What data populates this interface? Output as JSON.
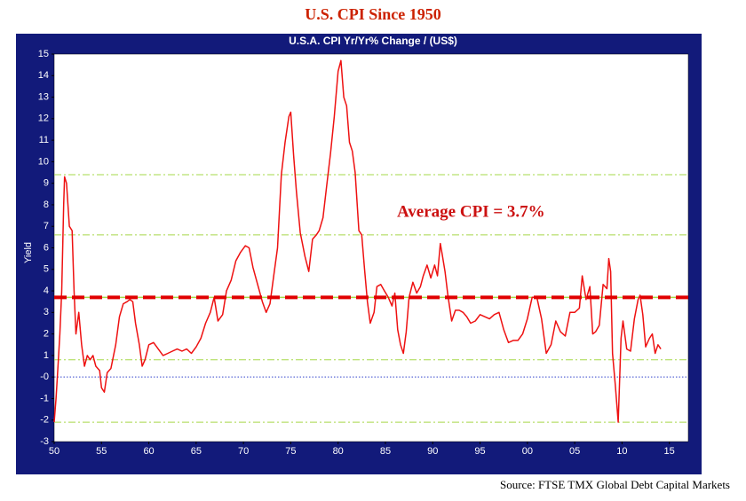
{
  "chart_data": {
    "type": "line",
    "title": "U.S. CPI Since 1950",
    "subtitle": "U.S.A. CPI Yr/Yr% Change / (US$)",
    "y_label": "Yield",
    "annotation": "Average CPI = 3.7%",
    "source": "Source: FTSE TMX Global Debt Capital Markets",
    "xlim": [
      50,
      117
    ],
    "ylim": [
      -3,
      15
    ],
    "xticks": [
      50,
      55,
      60,
      65,
      70,
      75,
      80,
      85,
      90,
      95,
      {
        "value": 100,
        "label": "00"
      },
      {
        "value": 105,
        "label": "05"
      },
      {
        "value": 110,
        "label": "10"
      },
      {
        "value": 115,
        "label": "15"
      }
    ],
    "yticks": [
      -3,
      -2,
      -1,
      {
        "value": 0,
        "label": "-0"
      },
      1,
      2,
      3,
      4,
      5,
      6,
      7,
      8,
      9,
      10,
      11,
      12,
      13,
      14,
      15
    ],
    "reference_lines": [
      {
        "value": 9.4,
        "style": "dashdot",
        "color": "#a6d84a"
      },
      {
        "value": 6.6,
        "style": "dashdot",
        "color": "#a6d84a"
      },
      {
        "value": 0.8,
        "style": "dashdot",
        "color": "#a6d84a"
      },
      {
        "value": -2.1,
        "style": "dashdot",
        "color": "#a6d84a"
      },
      {
        "value": 0,
        "style": "dotted",
        "color": "#3344cc"
      },
      {
        "value": 3.7,
        "style": "solid",
        "color": "#a6d84a"
      },
      {
        "value": 3.7,
        "style": "dashed",
        "color": "#e00000"
      }
    ],
    "x": [
      50.0,
      50.2,
      50.4,
      50.6,
      50.8,
      51.0,
      51.1,
      51.3,
      51.6,
      51.9,
      52.1,
      52.3,
      52.6,
      52.9,
      53.2,
      53.5,
      53.8,
      54.1,
      54.4,
      54.8,
      55.0,
      55.3,
      55.6,
      56.0,
      56.5,
      56.9,
      57.3,
      57.7,
      58.0,
      58.3,
      58.6,
      59.0,
      59.3,
      59.6,
      60.0,
      60.5,
      61.0,
      61.5,
      62.0,
      62.5,
      63.0,
      63.5,
      64.0,
      64.5,
      65.0,
      65.5,
      66.0,
      66.5,
      66.9,
      67.3,
      67.8,
      68.2,
      68.7,
      69.2,
      69.7,
      70.2,
      70.6,
      71.0,
      71.5,
      72.0,
      72.4,
      72.8,
      73.2,
      73.6,
      74.0,
      74.4,
      74.8,
      75.0,
      75.3,
      75.6,
      76.0,
      76.5,
      76.9,
      77.3,
      77.7,
      78.0,
      78.4,
      78.8,
      79.2,
      79.6,
      80.0,
      80.3,
      80.6,
      80.9,
      81.2,
      81.5,
      81.8,
      82.2,
      82.5,
      82.8,
      83.1,
      83.4,
      83.8,
      84.1,
      84.5,
      84.9,
      85.3,
      85.7,
      86.0,
      86.3,
      86.6,
      86.9,
      87.2,
      87.5,
      87.9,
      88.3,
      88.7,
      89.0,
      89.4,
      89.8,
      90.2,
      90.5,
      90.8,
      91.0,
      91.3,
      91.6,
      92.0,
      92.4,
      92.8,
      93.2,
      93.6,
      94.0,
      94.5,
      95.0,
      95.5,
      96.0,
      96.5,
      97.0,
      97.5,
      98.0,
      98.5,
      99.0,
      99.5,
      100.0,
      100.5,
      101.0,
      101.5,
      102.0,
      102.5,
      103.0,
      103.5,
      104.0,
      104.5,
      105.0,
      105.5,
      105.8,
      106.2,
      106.6,
      106.9,
      107.2,
      107.6,
      108.0,
      108.4,
      108.6,
      108.8,
      109.0,
      109.3,
      109.6,
      109.9,
      110.1,
      110.5,
      110.9,
      111.3,
      111.7,
      111.9,
      112.2,
      112.5,
      112.9,
      113.2,
      113.5,
      113.8,
      114.1
    ],
    "series": [
      {
        "color": "#ee1111",
        "values": [
          -2.1,
          -1.0,
          0.5,
          2.0,
          4.0,
          8.0,
          9.3,
          9.0,
          7.0,
          6.8,
          4.0,
          2.0,
          3.0,
          1.5,
          0.5,
          1.0,
          0.8,
          1.0,
          0.5,
          0.3,
          -0.5,
          -0.7,
          0.2,
          0.4,
          1.5,
          2.8,
          3.4,
          3.5,
          3.6,
          3.5,
          2.5,
          1.5,
          0.5,
          0.8,
          1.5,
          1.6,
          1.3,
          1.0,
          1.1,
          1.2,
          1.3,
          1.2,
          1.3,
          1.1,
          1.4,
          1.8,
          2.5,
          3.0,
          3.7,
          2.6,
          2.9,
          4.0,
          4.5,
          5.4,
          5.8,
          6.1,
          6.0,
          5.1,
          4.3,
          3.5,
          3.0,
          3.4,
          4.7,
          6.0,
          9.4,
          10.9,
          12.1,
          12.3,
          10.3,
          8.6,
          6.7,
          5.6,
          4.9,
          6.4,
          6.6,
          6.8,
          7.4,
          8.9,
          10.4,
          12.1,
          14.2,
          14.7,
          13.0,
          12.6,
          10.9,
          10.5,
          9.5,
          6.8,
          6.6,
          5.0,
          3.5,
          2.5,
          3.0,
          4.2,
          4.3,
          4.0,
          3.7,
          3.3,
          3.9,
          2.2,
          1.5,
          1.1,
          2.1,
          3.7,
          4.4,
          3.9,
          4.2,
          4.7,
          5.2,
          4.6,
          5.2,
          4.7,
          6.2,
          5.7,
          4.9,
          3.8,
          2.6,
          3.1,
          3.1,
          3.0,
          2.8,
          2.5,
          2.6,
          2.9,
          2.8,
          2.7,
          2.9,
          3.0,
          2.2,
          1.6,
          1.7,
          1.7,
          2.0,
          2.7,
          3.7,
          3.7,
          2.7,
          1.1,
          1.5,
          2.6,
          2.1,
          1.9,
          3.0,
          3.0,
          3.2,
          4.7,
          3.6,
          4.2,
          2.0,
          2.1,
          2.4,
          4.3,
          4.1,
          5.5,
          4.9,
          1.1,
          -0.4,
          -2.1,
          1.8,
          2.6,
          1.3,
          1.2,
          2.7,
          3.6,
          3.8,
          2.9,
          1.4,
          1.8,
          2.0,
          1.1,
          1.5,
          1.3
        ]
      }
    ]
  }
}
